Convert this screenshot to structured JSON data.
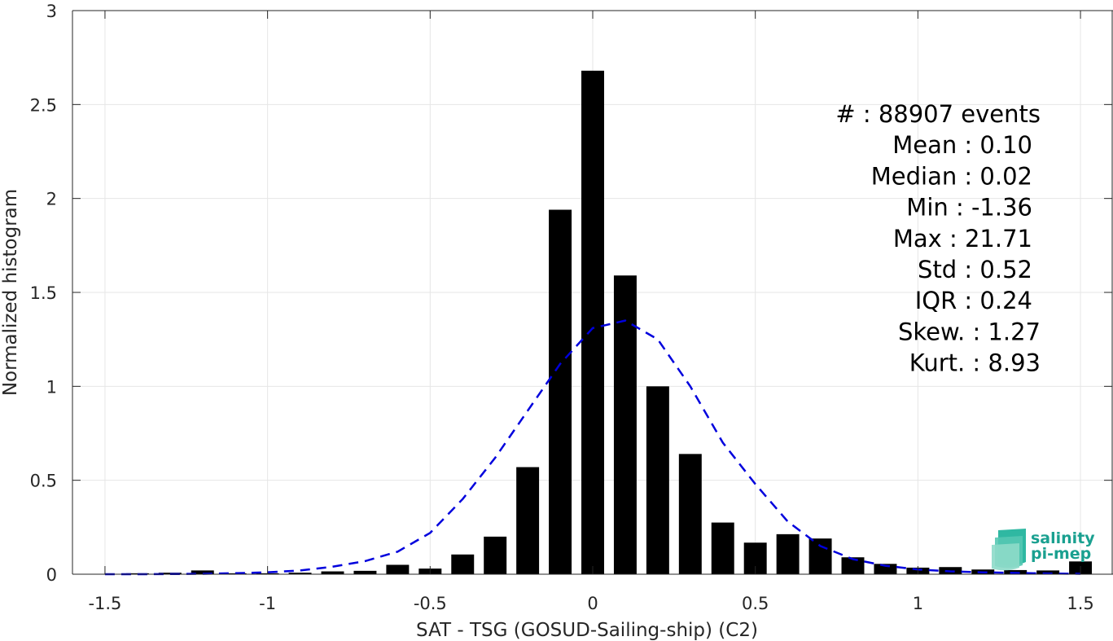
{
  "chart_data": {
    "type": "bar",
    "xlabel": "SAT - TSG (GOSUD-Sailing-ship) (C2)",
    "ylabel": "Normalized histogram",
    "xlim": [
      -1.6,
      1.6
    ],
    "ylim": [
      0,
      3
    ],
    "grid": true,
    "xticks": [
      -1.5,
      -1,
      -0.5,
      0,
      0.5,
      1,
      1.5
    ],
    "xtick_labels": [
      "-1.5",
      "-1",
      "-0.5",
      "0",
      "0.5",
      "1",
      "1.5"
    ],
    "yticks": [
      0,
      0.5,
      1,
      1.5,
      2,
      2.5,
      3
    ],
    "ytick_labels": [
      "0",
      "0.5",
      "1",
      "1.5",
      "2",
      "2.5",
      "3"
    ],
    "bar_width": 0.07,
    "bars": {
      "x": [
        -1.5,
        -1.4,
        -1.3,
        -1.2,
        -1.1,
        -1.0,
        -0.9,
        -0.8,
        -0.7,
        -0.6,
        -0.5,
        -0.4,
        -0.3,
        -0.2,
        -0.1,
        0.0,
        0.1,
        0.2,
        0.3,
        0.4,
        0.5,
        0.6,
        0.7,
        0.8,
        0.9,
        1.0,
        1.1,
        1.2,
        1.3,
        1.4,
        1.5
      ],
      "values": [
        0.0,
        0.005,
        0.008,
        0.02,
        0.005,
        0.005,
        0.008,
        0.015,
        0.018,
        0.05,
        0.03,
        0.105,
        0.2,
        0.57,
        1.94,
        2.68,
        1.59,
        1.0,
        0.64,
        0.275,
        0.168,
        0.213,
        0.19,
        0.09,
        0.055,
        0.035,
        0.038,
        0.025,
        0.022,
        0.02,
        0.068
      ]
    },
    "fit_curve": {
      "style": "dashed",
      "color": "#0000dd",
      "x": [
        -1.5,
        -1.4,
        -1.3,
        -1.2,
        -1.1,
        -1.0,
        -0.9,
        -0.8,
        -0.7,
        -0.6,
        -0.5,
        -0.4,
        -0.3,
        -0.2,
        -0.1,
        0.0,
        0.1,
        0.2,
        0.3,
        0.4,
        0.5,
        0.6,
        0.7,
        0.8,
        0.9,
        1.0,
        1.1,
        1.2,
        1.3,
        1.4,
        1.5
      ],
      "y": [
        0.0,
        0.0,
        0.001,
        0.002,
        0.005,
        0.01,
        0.02,
        0.04,
        0.07,
        0.12,
        0.22,
        0.4,
        0.62,
        0.87,
        1.12,
        1.31,
        1.35,
        1.25,
        1.0,
        0.7,
        0.48,
        0.28,
        0.15,
        0.08,
        0.045,
        0.025,
        0.015,
        0.01,
        0.007,
        0.004,
        0.002
      ]
    },
    "stats": [
      {
        "label": "#  : 88907 events",
        "row": 0
      },
      {
        "label": "Mean : 0.10",
        "row": 1
      },
      {
        "label": "Median : 0.02",
        "row": 2
      },
      {
        "label": "Min : -1.36",
        "row": 3
      },
      {
        "label": "Max : 21.71",
        "row": 4
      },
      {
        "label": "Std : 0.52",
        "row": 5
      },
      {
        "label": "IQR : 0.24",
        "row": 6
      },
      {
        "label": "Skew. : 1.27",
        "row": 7
      },
      {
        "label": "Kurt. : 8.93",
        "row": 8
      }
    ]
  },
  "logo": {
    "line1": "salinity",
    "line2": "pi-mep",
    "color": "#1aa090",
    "icon": "salinity-waves-icon"
  }
}
